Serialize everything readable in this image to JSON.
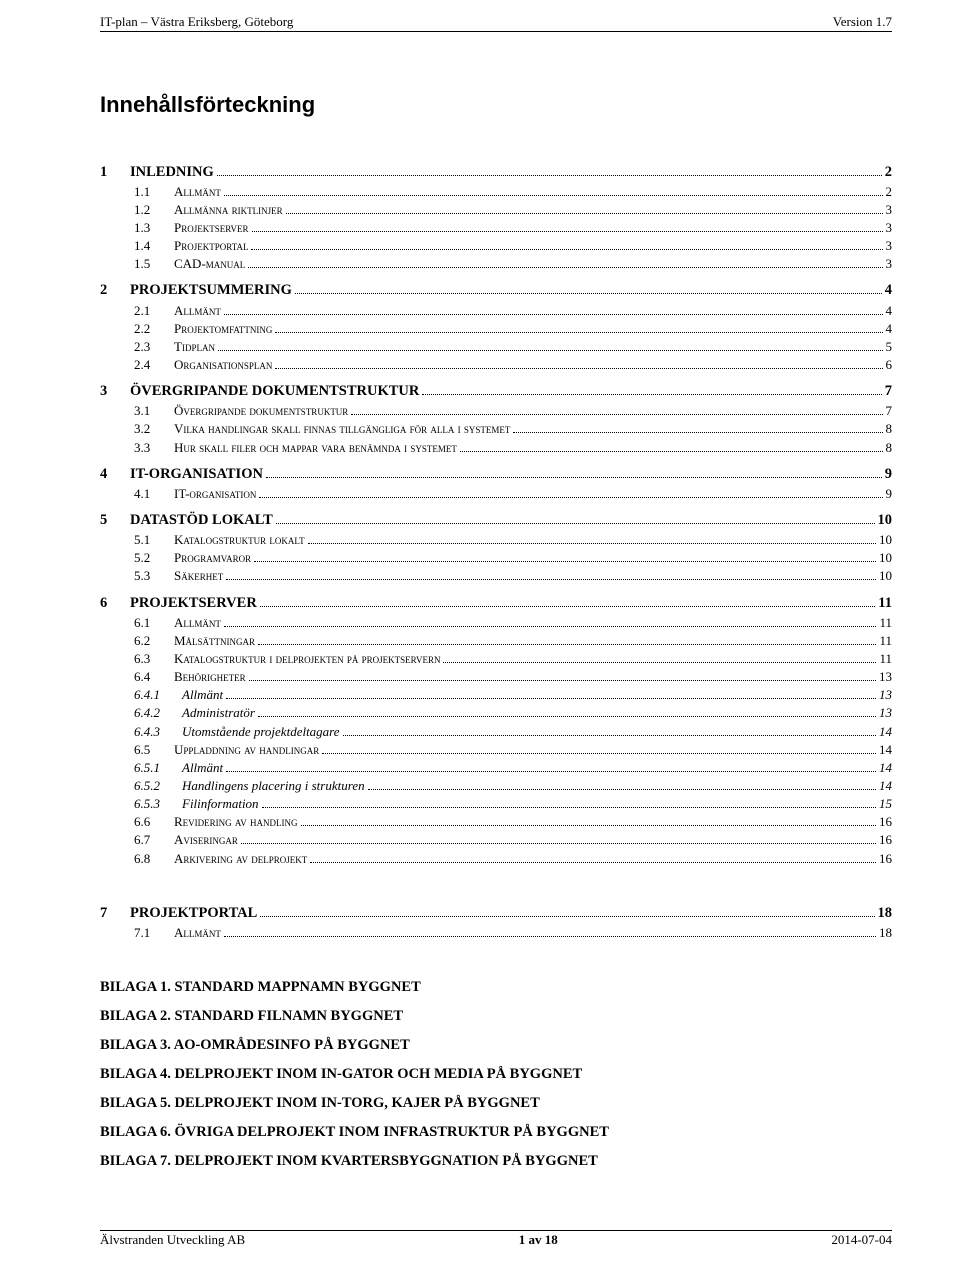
{
  "header": {
    "left": "IT-plan – Västra Eriksberg, Göteborg",
    "right": "Version 1.7"
  },
  "title": "Innehållsförteckning",
  "toc": [
    {
      "level": 1,
      "num": "1",
      "label": "INLEDNING",
      "page": "2"
    },
    {
      "level": 2,
      "num": "1.1",
      "label": "Allmänt",
      "page": "2"
    },
    {
      "level": 2,
      "num": "1.2",
      "label": "Allmänna riktlinjer",
      "page": "3"
    },
    {
      "level": 2,
      "num": "1.3",
      "label": "Projektserver",
      "page": "3"
    },
    {
      "level": 2,
      "num": "1.4",
      "label": "Projektportal",
      "page": "3"
    },
    {
      "level": 2,
      "num": "1.5",
      "label": "CAD-manual",
      "page": "3"
    },
    {
      "level": 1,
      "num": "2",
      "label": "PROJEKTSUMMERING",
      "page": "4"
    },
    {
      "level": 2,
      "num": "2.1",
      "label": "Allmänt",
      "page": "4"
    },
    {
      "level": 2,
      "num": "2.2",
      "label": "Projektomfattning",
      "page": "4"
    },
    {
      "level": 2,
      "num": "2.3",
      "label": "Tidplan",
      "page": "5"
    },
    {
      "level": 2,
      "num": "2.4",
      "label": "Organisationsplan",
      "page": "6"
    },
    {
      "level": 1,
      "num": "3",
      "label": "ÖVERGRIPANDE DOKUMENTSTRUKTUR",
      "page": "7"
    },
    {
      "level": 2,
      "num": "3.1",
      "label": "Övergripande dokumentstruktur",
      "page": "7"
    },
    {
      "level": 2,
      "num": "3.2",
      "label": "Vilka handlingar skall finnas tillgängliga för alla i systemet",
      "page": "8"
    },
    {
      "level": 2,
      "num": "3.3",
      "label": "Hur skall filer och mappar vara benämnda i systemet",
      "page": "8"
    },
    {
      "level": 1,
      "num": "4",
      "label": "IT-ORGANISATION",
      "page": "9"
    },
    {
      "level": 2,
      "num": "4.1",
      "label": "IT-organisation",
      "page": "9"
    },
    {
      "level": 1,
      "num": "5",
      "label": "DATASTÖD LOKALT",
      "page": "10"
    },
    {
      "level": 2,
      "num": "5.1",
      "label": "Katalogstruktur lokalt",
      "page": "10"
    },
    {
      "level": 2,
      "num": "5.2",
      "label": "Programvaror",
      "page": "10"
    },
    {
      "level": 2,
      "num": "5.3",
      "label": "Säkerhet",
      "page": "10"
    },
    {
      "level": 1,
      "num": "6",
      "label": "PROJEKTSERVER",
      "page": "11"
    },
    {
      "level": 2,
      "num": "6.1",
      "label": "Allmänt",
      "page": "11"
    },
    {
      "level": 2,
      "num": "6.2",
      "label": "Målsättningar",
      "page": "11"
    },
    {
      "level": 2,
      "num": "6.3",
      "label": "Katalogstruktur i delprojekten på projektservern",
      "page": "11"
    },
    {
      "level": 2,
      "num": "6.4",
      "label": "Behörigheter",
      "page": "13"
    },
    {
      "level": 3,
      "num": "6.4.1",
      "label": "Allmänt",
      "page": "13"
    },
    {
      "level": 3,
      "num": "6.4.2",
      "label": "Administratör",
      "page": "13"
    },
    {
      "level": 3,
      "num": "6.4.3",
      "label": "Utomstående projektdeltagare",
      "page": "14"
    },
    {
      "level": 2,
      "num": "6.5",
      "label": "Uppladdning av handlingar",
      "page": "14"
    },
    {
      "level": 3,
      "num": "6.5.1",
      "label": "Allmänt",
      "page": "14"
    },
    {
      "level": 3,
      "num": "6.5.2",
      "label": "Handlingens placering i strukturen",
      "page": "14"
    },
    {
      "level": 3,
      "num": "6.5.3",
      "label": "Filinformation",
      "page": "15"
    },
    {
      "level": 2,
      "num": "6.6",
      "label": "Revidering av handling",
      "page": "16"
    },
    {
      "level": 2,
      "num": "6.7",
      "label": "Aviseringar",
      "page": "16"
    },
    {
      "level": 2,
      "num": "6.8",
      "label": "Arkivering av delprojekt",
      "page": "16"
    },
    {
      "level": 1,
      "num": "7",
      "label": "PROJEKTPORTAL",
      "page": "18",
      "spacer": true
    },
    {
      "level": 2,
      "num": "7.1",
      "label": "Allmänt",
      "page": "18"
    }
  ],
  "bilagor": [
    "BILAGA 1. STANDARD MAPPNAMN BYGGNET",
    "BILAGA 2. STANDARD FILNAMN BYGGNET",
    "BILAGA 3. AO-OMRÅDESINFO PÅ BYGGNET",
    "BILAGA 4. DELPROJEKT INOM IN-GATOR OCH MEDIA PÅ BYGGNET",
    "BILAGA 5. DELPROJEKT INOM IN-TORG, KAJER PÅ BYGGNET",
    "BILAGA 6. ÖVRIGA DELPROJEKT INOM INFRASTRUKTUR PÅ BYGGNET",
    "BILAGA 7. DELPROJEKT INOM KVARTERSBYGGNATION PÅ BYGGNET"
  ],
  "footer": {
    "left": "Älvstranden Utveckling AB",
    "center": "1 av 18",
    "right": "2014-07-04"
  }
}
